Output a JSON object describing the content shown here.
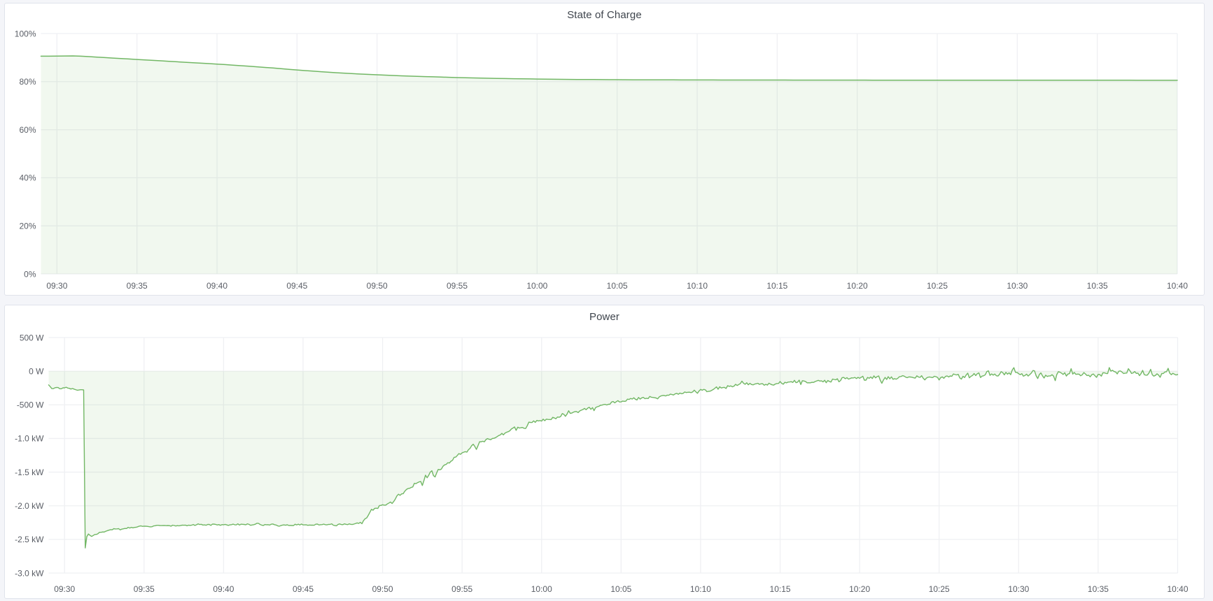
{
  "page": {
    "background_color": "#f4f5f9",
    "panel_background": "#ffffff",
    "panel_border_color": "#e0e3eb"
  },
  "panels": [
    {
      "title": "State of Charge"
    },
    {
      "title": "Power"
    }
  ],
  "chart_data": [
    {
      "type": "area",
      "title": "State of Charge",
      "unit": "percent",
      "series_color": "#72b765",
      "fill_opacity": 0.1,
      "grid": true,
      "legend": "none",
      "time_range": {
        "from": "09:29",
        "to": "10:40"
      },
      "x_start_min": 29.0,
      "x_step_min": 0.5,
      "ylim": [
        0,
        100
      ],
      "y_ticks": [
        {
          "value": 0,
          "label": "0%"
        },
        {
          "value": 20,
          "label": "20%"
        },
        {
          "value": 40,
          "label": "40%"
        },
        {
          "value": 60,
          "label": "60%"
        },
        {
          "value": 80,
          "label": "80%"
        },
        {
          "value": 100,
          "label": "100%"
        }
      ],
      "x_ticks": [
        {
          "minute": 30,
          "label": "09:30"
        },
        {
          "minute": 35,
          "label": "09:35"
        },
        {
          "minute": 40,
          "label": "09:40"
        },
        {
          "minute": 45,
          "label": "09:45"
        },
        {
          "minute": 50,
          "label": "09:50"
        },
        {
          "minute": 55,
          "label": "09:55"
        },
        {
          "minute": 60,
          "label": "10:00"
        },
        {
          "minute": 65,
          "label": "10:05"
        },
        {
          "minute": 70,
          "label": "10:10"
        },
        {
          "minute": 75,
          "label": "10:15"
        },
        {
          "minute": 80,
          "label": "10:20"
        },
        {
          "minute": 85,
          "label": "10:25"
        },
        {
          "minute": 90,
          "label": "10:30"
        },
        {
          "minute": 95,
          "label": "10:35"
        },
        {
          "minute": 100,
          "label": "10:40"
        }
      ],
      "values": [
        90.58,
        90.59,
        90.63,
        90.68,
        90.71,
        90.58,
        90.4,
        90.2,
        90.0,
        89.8,
        89.6,
        89.41,
        89.22,
        89.04,
        88.85,
        88.65,
        88.45,
        88.25,
        88.05,
        87.86,
        87.68,
        87.5,
        87.3,
        87.08,
        86.85,
        86.62,
        86.39,
        86.15,
        85.91,
        85.66,
        85.4,
        85.12,
        84.85,
        84.59,
        84.35,
        84.12,
        83.9,
        83.69,
        83.5,
        83.32,
        83.15,
        83.0,
        82.85,
        82.7,
        82.55,
        82.42,
        82.3,
        82.2,
        82.1,
        82.0,
        81.9,
        81.8,
        81.7,
        81.62,
        81.55,
        81.47,
        81.4,
        81.34,
        81.28,
        81.23,
        81.18,
        81.13,
        81.08,
        81.04,
        81.0,
        80.97,
        80.94,
        80.91,
        80.88,
        80.86,
        80.84,
        80.82,
        80.8,
        80.78,
        80.77,
        80.76,
        80.75,
        80.74,
        80.73,
        80.72,
        80.71,
        80.71,
        80.7,
        80.69,
        80.69,
        80.68,
        80.68,
        80.68,
        80.67,
        80.67,
        80.67,
        80.66,
        80.66,
        80.66,
        80.65,
        80.65,
        80.65,
        80.64,
        80.64,
        80.64,
        80.63,
        80.63,
        80.63,
        80.63,
        80.62,
        80.62,
        80.62,
        80.62,
        80.61,
        80.61,
        80.61,
        80.61,
        80.6,
        80.6,
        80.6,
        80.6,
        80.6,
        80.6,
        80.59,
        80.59,
        80.59,
        80.59,
        80.59,
        80.59,
        80.59,
        80.58,
        80.58,
        80.58,
        80.58,
        80.58,
        80.57,
        80.57,
        80.57,
        80.57,
        80.57,
        80.57,
        80.57,
        80.56,
        80.56,
        80.56,
        80.56,
        80.56,
        80.56
      ]
    },
    {
      "type": "area",
      "title": "Power",
      "unit": "watt",
      "series_color": "#72b765",
      "fill_opacity": 0.1,
      "grid": true,
      "legend": "none",
      "time_range": {
        "from": "09:29",
        "to": "10:40"
      },
      "x_start_min": 29.0,
      "x_step_min": 0.1,
      "ylim": [
        -3000,
        500
      ],
      "y_ticks": [
        {
          "value": 500,
          "label": "500 W"
        },
        {
          "value": 0,
          "label": "0 W"
        },
        {
          "value": -500,
          "label": "-500 W"
        },
        {
          "value": -1000,
          "label": "-1.0 kW"
        },
        {
          "value": -1500,
          "label": "-1.5 kW"
        },
        {
          "value": -2000,
          "label": "-2.0 kW"
        },
        {
          "value": -2500,
          "label": "-2.5 kW"
        },
        {
          "value": -3000,
          "label": "-3.0 kW"
        }
      ],
      "x_ticks": [
        {
          "minute": 30,
          "label": "09:30"
        },
        {
          "minute": 35,
          "label": "09:35"
        },
        {
          "minute": 40,
          "label": "09:40"
        },
        {
          "minute": 45,
          "label": "09:45"
        },
        {
          "minute": 50,
          "label": "09:50"
        },
        {
          "minute": 55,
          "label": "09:55"
        },
        {
          "minute": 60,
          "label": "10:00"
        },
        {
          "minute": 65,
          "label": "10:05"
        },
        {
          "minute": 70,
          "label": "10:10"
        },
        {
          "minute": 75,
          "label": "10:15"
        },
        {
          "minute": 80,
          "label": "10:20"
        },
        {
          "minute": 85,
          "label": "10:25"
        },
        {
          "minute": 90,
          "label": "10:30"
        },
        {
          "minute": 95,
          "label": "10:35"
        },
        {
          "minute": 100,
          "label": "10:40"
        }
      ],
      "values": [
        -204,
        -230,
        -259,
        -259,
        -246,
        -243,
        -244,
        -261,
        -261,
        -248,
        -248,
        -238,
        -251,
        -255,
        -265,
        -257,
        -266,
        -275,
        -283,
        -280,
        -276,
        -276,
        -279,
        -2627,
        -2460,
        -2419,
        -2440,
        -2456,
        -2442,
        -2427,
        -2426,
        -2415,
        -2394,
        -2394,
        -2389,
        -2390,
        -2378,
        -2370,
        -2362,
        -2355,
        -2357,
        -2341,
        -2345,
        -2344,
        -2341,
        -2358,
        -2348,
        -2343,
        -2337,
        -2338,
        -2321,
        -2331,
        -2321,
        -2328,
        -2322,
        -2320,
        -2312,
        -2303,
        -2299,
        -2306,
        -2303,
        -2304,
        -2306,
        -2310,
        -2314,
        -2311,
        -2300,
        -2297,
        -2291,
        -2291,
        -2294,
        -2295,
        -2294,
        -2293,
        -2296,
        -2294,
        -2296,
        -2303,
        -2289,
        -2294,
        -2301,
        -2295,
        -2298,
        -2293,
        -2289,
        -2290,
        -2288,
        -2297,
        -2289,
        -2292,
        -2288,
        -2279,
        -2293,
        -2282,
        -2269,
        -2279,
        -2276,
        -2287,
        -2284,
        -2290,
        -2278,
        -2278,
        -2292,
        -2273,
        -2273,
        -2277,
        -2285,
        -2280,
        -2291,
        -2280,
        -2282,
        -2277,
        -2284,
        -2292,
        -2283,
        -2281,
        -2273,
        -2282,
        -2284,
        -2269,
        -2286,
        -2274,
        -2276,
        -2278,
        -2282,
        -2269,
        -2277,
        -2291,
        -2285,
        -2281,
        -2274,
        -2260,
        -2262,
        -2279,
        -2288,
        -2293,
        -2279,
        -2282,
        -2281,
        -2286,
        -2274,
        -2271,
        -2281,
        -2287,
        -2298,
        -2304,
        -2295,
        -2288,
        -2284,
        -2290,
        -2282,
        -2293,
        -2292,
        -2294,
        -2294,
        -2275,
        -2284,
        -2274,
        -2285,
        -2272,
        -2284,
        -2284,
        -2283,
        -2291,
        -2286,
        -2289,
        -2289,
        -2290,
        -2274,
        -2272,
        -2285,
        -2281,
        -2280,
        -2273,
        -2281,
        -2283,
        -2277,
        -2277,
        -2269,
        -2289,
        -2295,
        -2298,
        -2277,
        -2270,
        -2279,
        -2281,
        -2269,
        -2276,
        -2280,
        -2269,
        -2276,
        -2278,
        -2272,
        -2264,
        -2255,
        -2262,
        -2246,
        -2267,
        -2222,
        -2193,
        -2181,
        -2143,
        -2099,
        -2053,
        -2066,
        -2039,
        -2036,
        -2040,
        -1998,
        -1995,
        -1985,
        -1990,
        -1991,
        -1973,
        -1959,
        -1945,
        -1967,
        -1936,
        -1900,
        -1854,
        -1828,
        -1845,
        -1823,
        -1820,
        -1783,
        -1758,
        -1744,
        -1740,
        -1728,
        -1720,
        -1666,
        -1672,
        -1656,
        -1646,
        -1639,
        -1699,
        -1624,
        -1546,
        -1583,
        -1547,
        -1500,
        -1480,
        -1552,
        -1572,
        -1514,
        -1460,
        -1466,
        -1455,
        -1413,
        -1392,
        -1385,
        -1361,
        -1365,
        -1338,
        -1325,
        -1280,
        -1277,
        -1252,
        -1225,
        -1235,
        -1214,
        -1204,
        -1196,
        -1203,
        -1167,
        -1147,
        -1108,
        -1086,
        -1119,
        -1163,
        -1108,
        -1048,
        -1050,
        -1041,
        -1050,
        -1016,
        -1002,
        -1012,
        -1018,
        -1001,
        -998,
        -988,
        -973,
        -957,
        -948,
        -924,
        -947,
        -920,
        -907,
        -899,
        -887,
        -859,
        -845,
        -828,
        -879,
        -832,
        -845,
        -840,
        -837,
        -849,
        -852,
        -811,
        -758,
        -762,
        -763,
        -738,
        -761,
        -732,
        -739,
        -734,
        -741,
        -713,
        -736,
        -713,
        -717,
        -718,
        -719,
        -686,
        -694,
        -707,
        -681,
        -685,
        -674,
        -630,
        -641,
        -670,
        -638,
        -588,
        -627,
        -623,
        -609,
        -601,
        -600,
        -615,
        -591,
        -579,
        -570,
        -553,
        -573,
        -549,
        -536,
        -567,
        -542,
        -586,
        -541,
        -528,
        -522,
        -507,
        -504,
        -496,
        -493,
        -502,
        -492,
        -491,
        -459,
        -451,
        -471,
        -453,
        -438,
        -458,
        -457,
        -444,
        -448,
        -445,
        -416,
        -420,
        -406,
        -414,
        -395,
        -417,
        -427,
        -390,
        -415,
        -396,
        -389,
        -409,
        -403,
        -407,
        -375,
        -387,
        -390,
        -394,
        -398,
        -411,
        -382,
        -368,
        -362,
        -360,
        -368,
        -356,
        -358,
        -341,
        -347,
        -354,
        -337,
        -330,
        -343,
        -326,
        -335,
        -330,
        -309,
        -317,
        -313,
        -312,
        -318,
        -309,
        -282,
        -306,
        -329,
        -295,
        -271,
        -283,
        -271,
        -278,
        -305,
        -300,
        -297,
        -284,
        -272,
        -253,
        -233,
        -269,
        -232,
        -250,
        -244,
        -241,
        -257,
        -216,
        -226,
        -219,
        -232,
        -222,
        -196,
        -212,
        -198,
        -184,
        -148,
        -179,
        -195,
        -172,
        -202,
        -180,
        -198,
        -203,
        -192,
        -186,
        -180,
        -196,
        -188,
        -186,
        -208,
        -196,
        -206,
        -178,
        -193,
        -203,
        -206,
        -191,
        -183,
        -182,
        -153,
        -181,
        -194,
        -165,
        -174,
        -162,
        -161,
        -156,
        -167,
        -137,
        -171,
        -163,
        -134,
        -198,
        -142,
        -146,
        -153,
        -173,
        -172,
        -173,
        -166,
        -167,
        -154,
        -145,
        -137,
        -147,
        -143,
        -158,
        -135,
        -171,
        -139,
        -153,
        -162,
        -117,
        -123,
        -128,
        -113,
        -157,
        -139,
        -96,
        -93,
        -112,
        -96,
        -118,
        -110,
        -99,
        -101,
        -93,
        -110,
        -92,
        -105,
        -91,
        -75,
        -134,
        -134,
        -93,
        -105,
        -86,
        -109,
        -70,
        -99,
        -81,
        -71,
        -137,
        -179,
        -130,
        -93,
        -123,
        -82,
        -114,
        -85,
        -121,
        -111,
        -119,
        -106,
        -83,
        -80,
        -67,
        -73,
        -89,
        -96,
        -85,
        -87,
        -90,
        -98,
        -102,
        -69,
        -87,
        -92,
        -67,
        -106,
        -129,
        -102,
        -90,
        -86,
        -92,
        -94,
        -75,
        -82,
        -93,
        -130,
        -95,
        -85,
        -106,
        -78,
        -70,
        -86,
        -71,
        -75,
        -41,
        -50,
        -56,
        -47,
        -100,
        -118,
        -76,
        -94,
        -58,
        -30,
        -98,
        -76,
        -64,
        -35,
        -65,
        -38,
        -25,
        -94,
        -73,
        -68,
        -54,
        -6,
        5,
        -62,
        -41,
        -59,
        -42,
        -68,
        -72,
        -45,
        -7,
        -21,
        -55,
        -17,
        -44,
        -24,
        -52,
        18,
        52,
        -17,
        -19,
        -37,
        -51,
        -37,
        -74,
        -63,
        -44,
        -72,
        -50,
        -27,
        10,
        5,
        -67,
        -109,
        -50,
        -25,
        -69,
        -101,
        -60,
        -78,
        -70,
        -70,
        -53,
        -74,
        -141,
        -50,
        -7,
        -16,
        -30,
        -48,
        -23,
        -72,
        -43,
        -36,
        37,
        -43,
        -19,
        -47,
        -43,
        -44,
        -68,
        -54,
        -20,
        -41,
        -65,
        -60,
        -84,
        -53,
        -42,
        -68,
        -92,
        -47,
        -50,
        -74,
        -23,
        -24,
        -34,
        -35,
        53,
        0,
        14,
        -5,
        -12,
        -40,
        -1,
        4,
        -13,
        -35,
        -29,
        -28,
        37,
        7,
        -34,
        -26,
        -6,
        -33,
        -29,
        -66,
        -36,
        12,
        -51,
        -60,
        -58,
        -25,
        27,
        -52,
        -73,
        -63,
        -39,
        -58,
        -91,
        -35,
        -34,
        -11,
        -9,
        42,
        -29,
        -51,
        -32,
        -45,
        -57,
        -49
      ]
    }
  ]
}
